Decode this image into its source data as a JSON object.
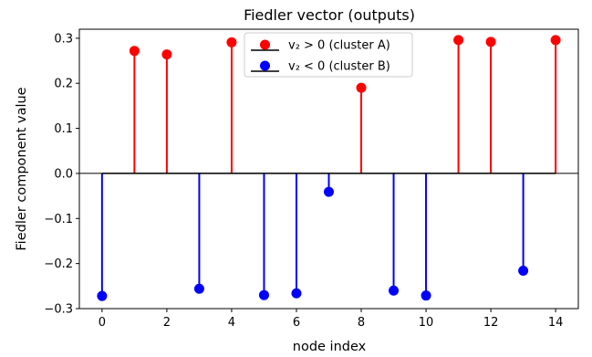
{
  "chart_data": {
    "type": "stem",
    "title": "Fiedler vector (outputs)",
    "xlabel": "node index",
    "ylabel": "Fiedler component value",
    "xlim": [
      -0.7,
      14.7
    ],
    "ylim": [
      -0.3,
      0.32
    ],
    "xticks": [
      0,
      2,
      4,
      6,
      8,
      10,
      12,
      14
    ],
    "yticks": [
      -0.3,
      -0.2,
      -0.1,
      0.0,
      0.1,
      0.2,
      0.3
    ],
    "ytick_labels": [
      "−0.3",
      "−0.2",
      "−0.1",
      "0.0",
      "0.1",
      "0.2",
      "0.3"
    ],
    "grid": false,
    "legend_position": "top-center",
    "series": [
      {
        "name": "v₂ > 0 (cluster A)",
        "color": "#ff0000",
        "x": [
          1,
          2,
          4,
          8,
          11,
          12,
          14
        ],
        "values": [
          0.272,
          0.264,
          0.291,
          0.19,
          0.296,
          0.292,
          0.296
        ]
      },
      {
        "name": "v₂ < 0 (cluster B)",
        "color": "#0000ff",
        "x": [
          0,
          3,
          5,
          6,
          7,
          9,
          10,
          13
        ],
        "values": [
          -0.272,
          -0.256,
          -0.27,
          -0.266,
          -0.041,
          -0.26,
          -0.271,
          -0.216
        ]
      }
    ],
    "baseline": {
      "value": 0,
      "color": "#000000"
    }
  }
}
